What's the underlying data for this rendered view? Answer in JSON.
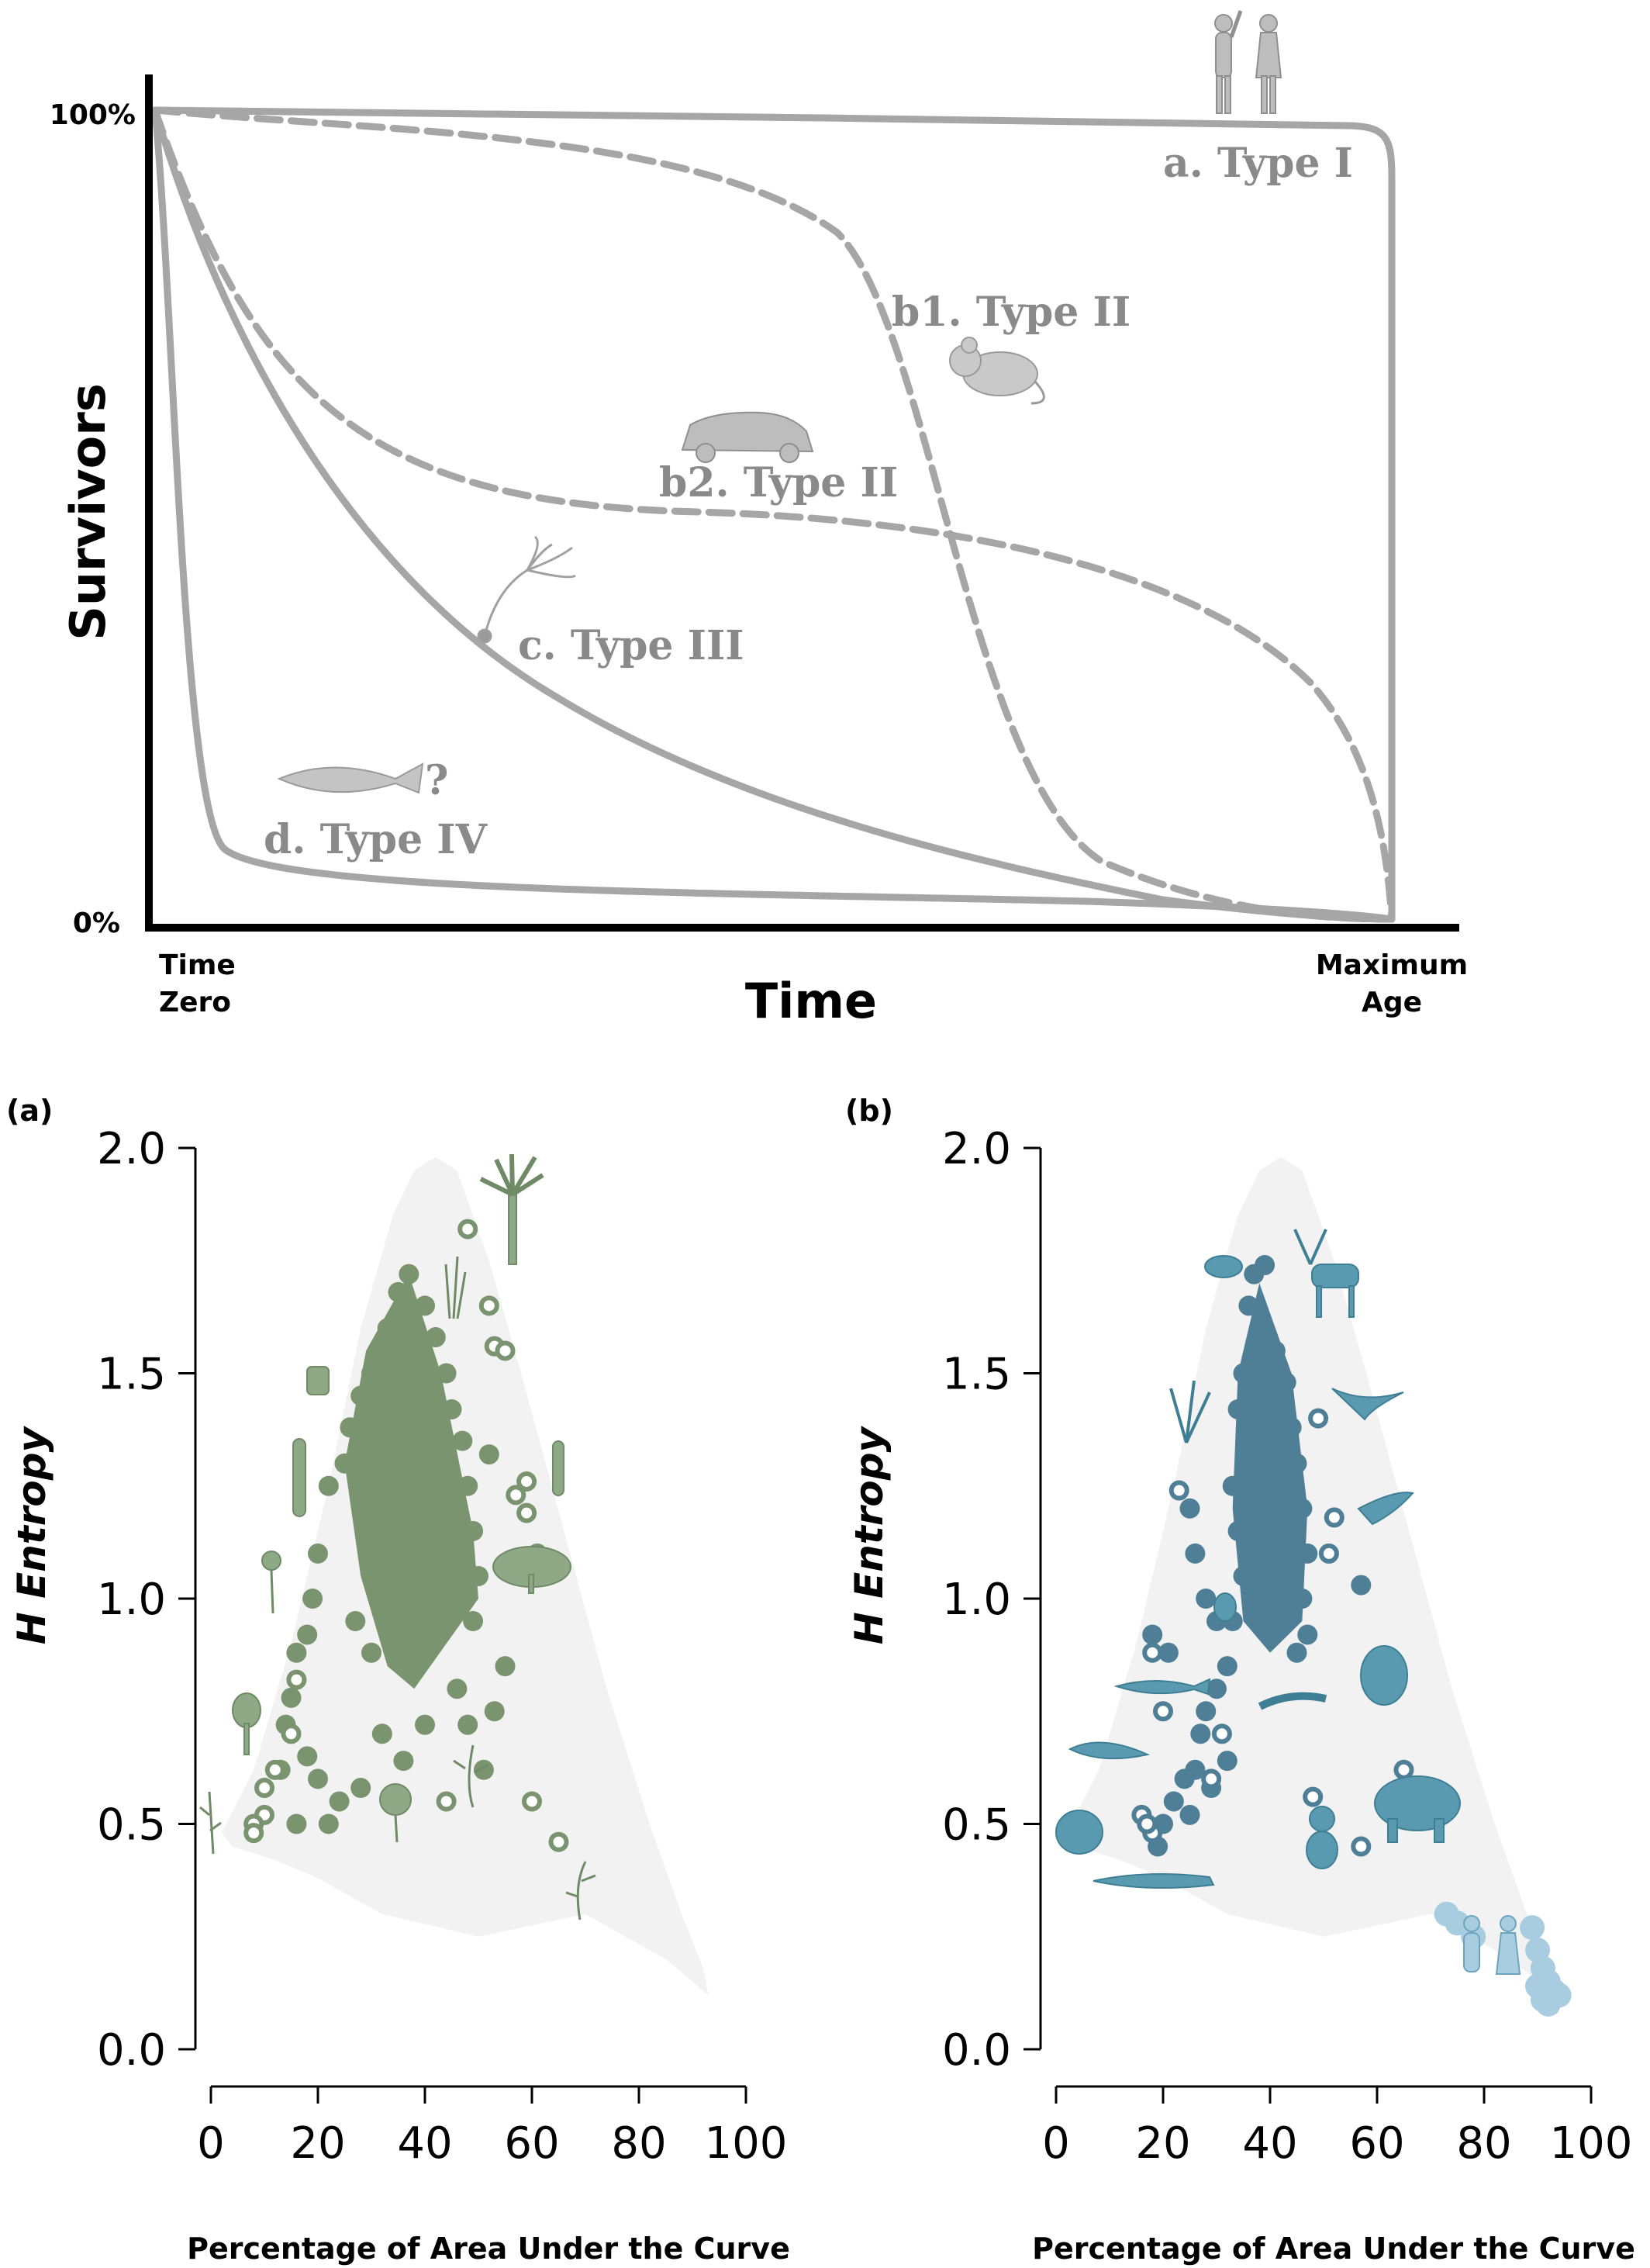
{
  "top_panel": {
    "y_axis_label": "Survivors",
    "x_axis_label": "Time",
    "y_tick_top": "100%",
    "y_tick_bottom": "0%",
    "x_tick_left": [
      "Time",
      "Zero"
    ],
    "x_tick_right": [
      "Maximum",
      "Age"
    ],
    "curves": [
      {
        "id": "type1",
        "label": "a. Type I",
        "style": "solid",
        "icon": "humans-icon"
      },
      {
        "id": "type2_b1",
        "label": "b1. Type II",
        "style": "dashed",
        "icon": "mouse-icon"
      },
      {
        "id": "type2_b2",
        "label": "b2. Type II",
        "style": "dashed",
        "icon": "car-icon"
      },
      {
        "id": "type3",
        "label": "c. Type III",
        "style": "solid",
        "icon": "seedling-icon"
      },
      {
        "id": "type4",
        "label": "d. Type IV",
        "style": "solid",
        "icon": "fish-icon",
        "note": "?"
      }
    ]
  },
  "chart_data": [
    {
      "type": "scatter",
      "panel_label": "(a)",
      "xlabel": "Percentage of Area Under the Curve",
      "ylabel": "H Entropy",
      "xlim": [
        0,
        100
      ],
      "ylim": [
        0,
        2
      ],
      "xticks": [
        "0",
        "20",
        "40",
        "60",
        "80",
        "100"
      ],
      "yticks": [
        "0.0",
        "0.5",
        "1.0",
        "1.5",
        "2.0"
      ],
      "series_color": "#7a9470",
      "background_color": "#f2f2f2",
      "filled_points": [
        [
          37,
          1.72
        ],
        [
          35,
          1.68
        ],
        [
          40,
          1.65
        ],
        [
          33,
          1.6
        ],
        [
          42,
          1.58
        ],
        [
          30,
          1.5
        ],
        [
          44,
          1.5
        ],
        [
          28,
          1.45
        ],
        [
          45,
          1.42
        ],
        [
          26,
          1.38
        ],
        [
          47,
          1.35
        ],
        [
          25,
          1.3
        ],
        [
          48,
          1.25
        ],
        [
          52,
          1.32
        ],
        [
          22,
          1.25
        ],
        [
          49,
          1.15
        ],
        [
          20,
          1.1
        ],
        [
          50,
          1.05
        ],
        [
          19,
          1.0
        ],
        [
          49,
          0.95
        ],
        [
          18,
          0.92
        ],
        [
          16,
          0.88
        ],
        [
          15,
          0.78
        ],
        [
          14,
          0.72
        ],
        [
          13,
          0.62
        ],
        [
          18,
          0.65
        ],
        [
          20,
          0.6
        ],
        [
          24,
          0.55
        ],
        [
          16,
          0.5
        ],
        [
          22,
          0.5
        ],
        [
          28,
          0.58
        ],
        [
          32,
          0.7
        ],
        [
          36,
          0.64
        ],
        [
          40,
          0.72
        ],
        [
          46,
          0.8
        ],
        [
          48,
          0.72
        ],
        [
          53,
          0.75
        ],
        [
          55,
          0.85
        ],
        [
          51,
          0.62
        ],
        [
          27,
          0.95
        ],
        [
          30,
          0.88
        ]
      ],
      "open_points": [
        [
          48,
          1.82
        ],
        [
          52,
          1.65
        ],
        [
          53,
          1.56
        ],
        [
          55,
          1.55
        ],
        [
          57,
          1.23
        ],
        [
          59,
          1.26
        ],
        [
          59,
          1.19
        ],
        [
          61,
          1.1
        ],
        [
          16,
          0.82
        ],
        [
          15,
          0.7
        ],
        [
          12,
          0.62
        ],
        [
          10,
          0.58
        ],
        [
          10,
          0.52
        ],
        [
          8,
          0.5
        ],
        [
          8,
          0.48
        ],
        [
          44,
          0.55
        ],
        [
          60,
          0.55
        ],
        [
          65,
          0.46
        ]
      ],
      "icons": [
        "palm-tree-icon",
        "grass-icon",
        "moss-icon",
        "cactus-icon",
        "tall-cactus-icon",
        "shrub-icon",
        "tree-icon",
        "flower-icon",
        "small-tree-icon",
        "herb-icon",
        "orchid-icon",
        "fern-icon",
        "seaweed-icon",
        "weed-icon"
      ]
    },
    {
      "type": "scatter",
      "panel_label": "(b)",
      "xlabel": "Percentage of Area Under the Curve",
      "ylabel": "H Entropy",
      "xlim": [
        0,
        100
      ],
      "ylim": [
        0,
        2
      ],
      "xticks": [
        "0",
        "20",
        "40",
        "60",
        "80",
        "100"
      ],
      "yticks": [
        "0.0",
        "0.5",
        "1.0",
        "1.5",
        "2.0"
      ],
      "series_color": "#4e7f96",
      "highlight_color": "#a9cde0",
      "background_color": "#f2f2f2",
      "filled_points": [
        [
          39,
          1.74
        ],
        [
          37,
          1.72
        ],
        [
          36,
          1.65
        ],
        [
          38,
          1.6
        ],
        [
          41,
          1.55
        ],
        [
          35,
          1.5
        ],
        [
          43,
          1.48
        ],
        [
          34,
          1.42
        ],
        [
          44,
          1.38
        ],
        [
          36,
          1.32
        ],
        [
          45,
          1.3
        ],
        [
          33,
          1.25
        ],
        [
          46,
          1.2
        ],
        [
          34,
          1.15
        ],
        [
          47,
          1.1
        ],
        [
          35,
          1.05
        ],
        [
          46,
          1.0
        ],
        [
          33,
          0.95
        ],
        [
          47,
          0.92
        ],
        [
          32,
          0.85
        ],
        [
          45,
          0.88
        ],
        [
          30,
          0.8
        ],
        [
          28,
          0.75
        ],
        [
          27,
          0.7
        ],
        [
          26,
          0.62
        ],
        [
          24,
          0.6
        ],
        [
          22,
          0.55
        ],
        [
          20,
          0.5
        ],
        [
          19,
          0.45
        ],
        [
          25,
          0.52
        ],
        [
          29,
          0.58
        ],
        [
          32,
          0.64
        ],
        [
          21,
          0.88
        ],
        [
          18,
          0.92
        ],
        [
          25,
          1.2
        ],
        [
          26,
          1.1
        ],
        [
          28,
          1.0
        ],
        [
          30,
          0.95
        ],
        [
          57,
          1.03
        ]
      ],
      "open_points": [
        [
          23,
          1.24
        ],
        [
          20,
          0.75
        ],
        [
          18,
          0.88
        ],
        [
          49,
          1.4
        ],
        [
          52,
          1.18
        ],
        [
          51,
          1.1
        ],
        [
          16,
          0.52
        ],
        [
          18,
          0.48
        ],
        [
          17,
          0.5
        ],
        [
          48,
          0.56
        ],
        [
          57,
          0.45
        ],
        [
          65,
          0.62
        ],
        [
          29,
          0.6
        ],
        [
          31,
          0.7
        ]
      ],
      "highlight_points": [
        [
          73,
          0.3
        ],
        [
          75,
          0.28
        ],
        [
          78,
          0.25
        ],
        [
          89,
          0.27
        ],
        [
          90,
          0.22
        ],
        [
          91,
          0.18
        ],
        [
          92,
          0.15
        ],
        [
          93,
          0.13
        ],
        [
          94,
          0.12
        ],
        [
          92,
          0.1
        ],
        [
          90,
          0.14
        ],
        [
          91,
          0.11
        ]
      ],
      "icons": [
        "beetle-shell-icon",
        "deer-icon",
        "coral-icon",
        "eagle-icon",
        "bird-icon",
        "beetle-icon",
        "gorilla-icon",
        "fish-icon",
        "salamander-icon",
        "ray-icon",
        "elephant-icon",
        "frog-icon",
        "koala-icon",
        "pike-icon",
        "humans-icon"
      ]
    }
  ]
}
